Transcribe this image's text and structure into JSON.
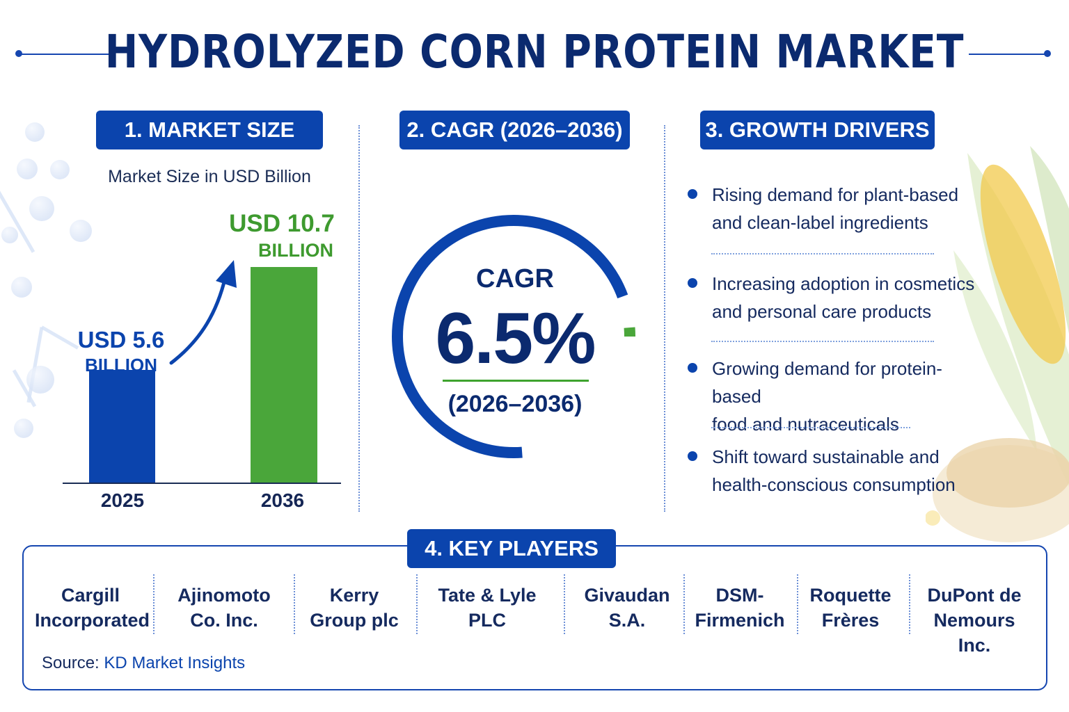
{
  "title": "HYDROLYZED CORN PROTEIN MARKET",
  "sections": {
    "market_size": "1. MARKET SIZE",
    "cagr": "2. CAGR (2026–2036)",
    "growth_drivers": "3. GROWTH DRIVERS",
    "key_players": "4. KEY PLAYERS"
  },
  "market_size": {
    "subtitle": "Market Size in USD Billion",
    "bars": [
      {
        "year": "2025",
        "label_line1": "USD 5.6",
        "label_line2": "BILLION",
        "value": 5.6,
        "color": "#0b44ad"
      },
      {
        "year": "2036",
        "label_line1": "USD 10.7",
        "label_line2": "BILLION",
        "value": 10.7,
        "color": "#4aa63a"
      }
    ]
  },
  "cagr": {
    "word": "CAGR",
    "value_text": "6.5%",
    "period": "(2026–2036)",
    "ring_colors": {
      "primary": "#0b44ad",
      "accent": "#4aa63a"
    }
  },
  "growth_drivers": [
    {
      "line1": "Rising demand for plant-based",
      "line2": "and clean-label ingredients"
    },
    {
      "line1": "Increasing adoption in cosmetics",
      "line2": "and personal care products"
    },
    {
      "line1": "Growing demand for protein-based",
      "line2": "food and nutraceuticals"
    },
    {
      "line1": "Shift toward sustainable and",
      "line2": "health-conscious consumption"
    }
  ],
  "key_players": [
    {
      "line1": "Cargill",
      "line2": "Incorporated"
    },
    {
      "line1": "Ajinomoto",
      "line2": "Co. Inc."
    },
    {
      "line1": "Kerry",
      "line2": "Group plc"
    },
    {
      "line1": "Tate & Lyle",
      "line2": "PLC"
    },
    {
      "line1": "Givaudan",
      "line2": "S.A."
    },
    {
      "line1": "DSM-",
      "line2": "Firmenich"
    },
    {
      "line1": "Roquette",
      "line2": "Frères"
    },
    {
      "line1": "DuPont de",
      "line2": "Nemours Inc."
    }
  ],
  "source": {
    "label": "Source:",
    "value": "KD Market Insights"
  },
  "chart_data": {
    "type": "bar",
    "categories": [
      "2025",
      "2036"
    ],
    "values": [
      5.6,
      10.7
    ],
    "title": "Market Size in USD Billion",
    "data_labels": [
      "USD 5.6 BILLION",
      "USD 10.7 BILLION"
    ],
    "xlabel": "",
    "ylabel": ""
  }
}
